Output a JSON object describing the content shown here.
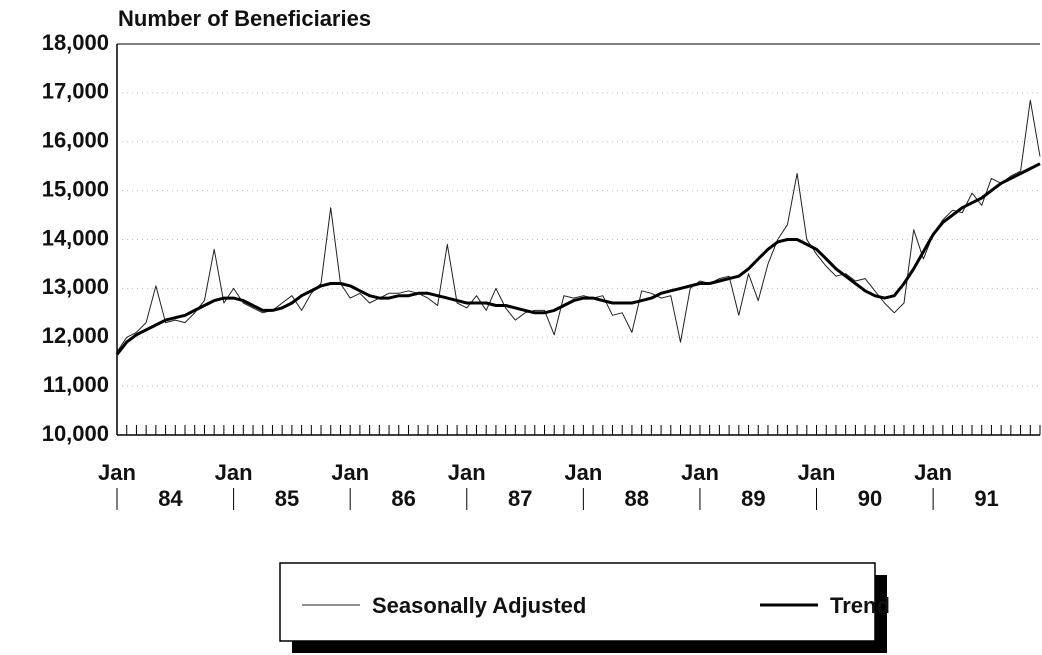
{
  "chart_data": {
    "type": "line",
    "y_label": "Number of Beneficiaries",
    "categories": [
      "Jan",
      null,
      null,
      null,
      null,
      null,
      null,
      null,
      null,
      null,
      null,
      null,
      "Jan",
      null,
      null,
      null,
      null,
      null,
      null,
      null,
      null,
      null,
      null,
      null,
      "Jan",
      null,
      null,
      null,
      null,
      null,
      null,
      null,
      null,
      null,
      null,
      null,
      "Jan",
      null,
      null,
      null,
      null,
      null,
      null,
      null,
      null,
      null,
      null,
      null,
      "Jan",
      null,
      null,
      null,
      null,
      null,
      null,
      null,
      null,
      null,
      null,
      null,
      "Jan",
      null,
      null,
      null,
      null,
      null,
      null,
      null,
      null,
      null,
      null,
      null,
      "Jan",
      null,
      null,
      null,
      null,
      null,
      null,
      null,
      null,
      null,
      null,
      null,
      "Jan",
      null,
      null,
      null,
      null,
      null,
      null,
      null,
      null,
      null,
      null,
      null
    ],
    "year_labels": [
      "84",
      "85",
      "86",
      "87",
      "88",
      "89",
      "90",
      "91"
    ],
    "series": [
      {
        "name": "Seasonally Adjusted",
        "color": "#222",
        "width": 1,
        "values": [
          11700,
          12000,
          12100,
          12300,
          13050,
          12300,
          12350,
          12300,
          12500,
          12750,
          13800,
          12700,
          13000,
          12700,
          12600,
          12500,
          12550,
          12700,
          12850,
          12550,
          12900,
          13100,
          14650,
          13100,
          12800,
          12900,
          12700,
          12800,
          12900,
          12900,
          12950,
          12900,
          12800,
          12650,
          13900,
          12700,
          12600,
          12850,
          12550,
          13000,
          12600,
          12350,
          12500,
          12550,
          12550,
          12050,
          12850,
          12800,
          12850,
          12800,
          12850,
          12450,
          12500,
          12100,
          12950,
          12900,
          12800,
          12850,
          11900,
          13000,
          13150,
          13100,
          13200,
          13250,
          12450,
          13300,
          12750,
          13500,
          14000,
          14300,
          15350,
          14000,
          13700,
          13450,
          13250,
          13300,
          13150,
          13200,
          12950,
          12700,
          12500,
          12700,
          14200,
          13600,
          14100,
          14400,
          14600,
          14550,
          14950,
          14700,
          15250,
          15150,
          15300,
          15400,
          16850,
          15700
        ]
      },
      {
        "name": "Trend",
        "color": "#000",
        "width": 3,
        "values": [
          11650,
          11900,
          12050,
          12150,
          12250,
          12350,
          12400,
          12450,
          12550,
          12650,
          12750,
          12800,
          12800,
          12750,
          12650,
          12550,
          12550,
          12600,
          12700,
          12850,
          12950,
          13050,
          13100,
          13100,
          13050,
          12950,
          12850,
          12800,
          12800,
          12850,
          12850,
          12900,
          12900,
          12850,
          12800,
          12750,
          12700,
          12700,
          12700,
          12650,
          12650,
          12600,
          12550,
          12500,
          12500,
          12550,
          12650,
          12750,
          12800,
          12800,
          12750,
          12700,
          12700,
          12700,
          12750,
          12800,
          12900,
          12950,
          13000,
          13050,
          13100,
          13100,
          13150,
          13200,
          13250,
          13400,
          13600,
          13800,
          13950,
          14000,
          14000,
          13900,
          13800,
          13600,
          13400,
          13250,
          13100,
          12950,
          12850,
          12800,
          12850,
          13100,
          13400,
          13750,
          14100,
          14350,
          14500,
          14650,
          14750,
          14850,
          15000,
          15150,
          15250,
          15350,
          15450,
          15550
        ]
      }
    ],
    "ylim": [
      10000,
      18000
    ],
    "yticks": [
      {
        "value": 10000,
        "label": "10,000"
      },
      {
        "value": 11000,
        "label": "11,000"
      },
      {
        "value": 12000,
        "label": "12,000"
      },
      {
        "value": 13000,
        "label": "13,000"
      },
      {
        "value": 14000,
        "label": "14,000"
      },
      {
        "value": 15000,
        "label": "15,000"
      },
      {
        "value": 16000,
        "label": "16,000"
      },
      {
        "value": 17000,
        "label": "17,000"
      },
      {
        "value": 18000,
        "label": "18,000"
      }
    ],
    "grid": true
  }
}
